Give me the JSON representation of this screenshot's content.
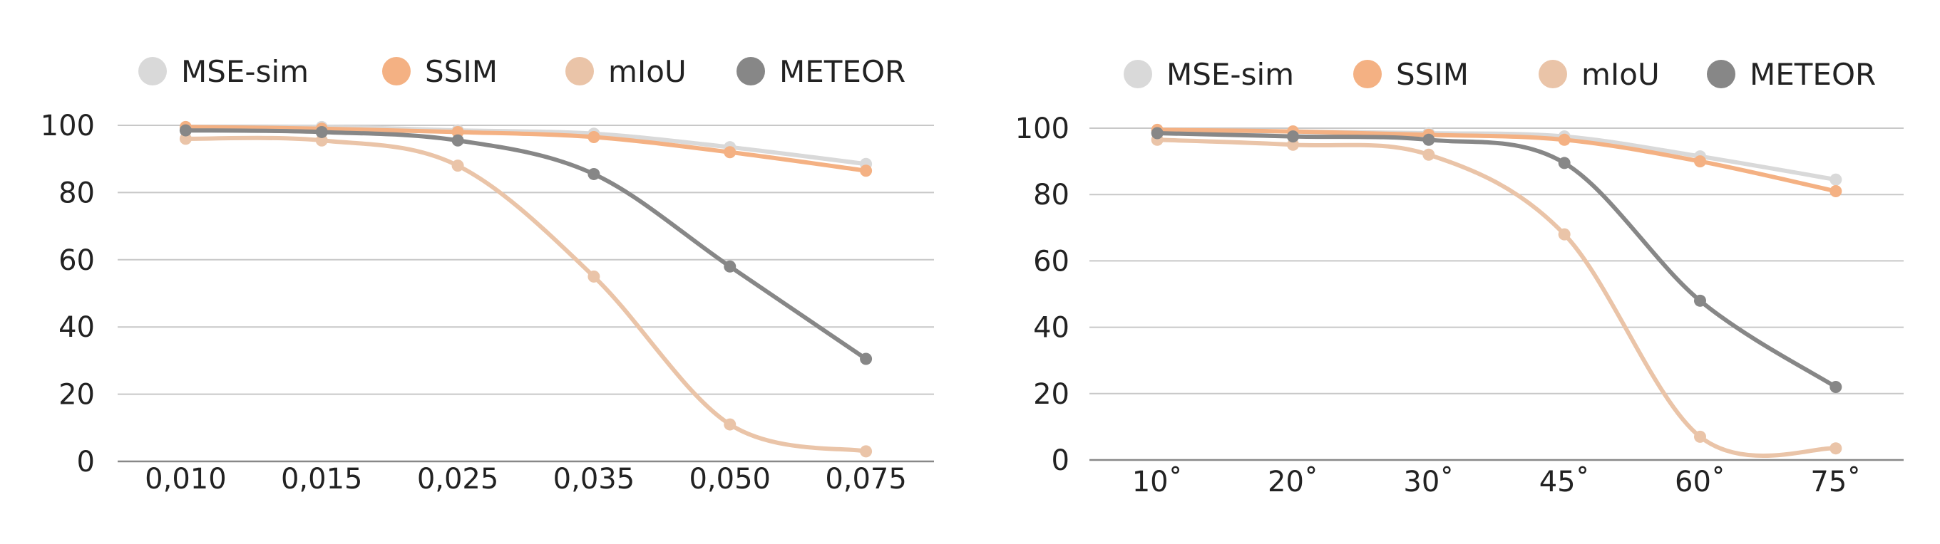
{
  "chart_data": [
    {
      "type": "line",
      "title": "",
      "xlabel": "",
      "ylabel": "",
      "categories": [
        "0,010",
        "0,015",
        "0,025",
        "0,035",
        "0,050",
        "0,075"
      ],
      "ylim": [
        0,
        100
      ],
      "yticks": [
        "0",
        "20",
        "40",
        "60",
        "80",
        "100"
      ],
      "grid": true,
      "legend_position": "top",
      "series": [
        {
          "name": "MSE-sim",
          "color": "#d9d9d9",
          "values": [
            99,
            99.5,
            98.5,
            97.5,
            93.5,
            88.5
          ]
        },
        {
          "name": "SSIM",
          "color": "#f4b183",
          "values": [
            99.5,
            99,
            98,
            96.5,
            92,
            86.5
          ]
        },
        {
          "name": "mIoU",
          "color": "#eac4a8",
          "values": [
            96,
            95.5,
            88,
            55,
            11,
            3
          ]
        },
        {
          "name": "METEOR",
          "color": "#878787",
          "values": [
            98.5,
            98,
            95.5,
            85.5,
            58,
            30.5
          ]
        }
      ]
    },
    {
      "type": "line",
      "title": "",
      "xlabel": "",
      "ylabel": "",
      "categories": [
        "10˚",
        "20˚",
        "30˚",
        "45˚",
        "60˚",
        "75˚"
      ],
      "ylim": [
        0,
        100
      ],
      "yticks": [
        "0",
        "20",
        "40",
        "60",
        "80",
        "100"
      ],
      "grid": true,
      "legend_position": "top",
      "series": [
        {
          "name": "MSE-sim",
          "color": "#d9d9d9",
          "values": [
            99,
            99,
            98.5,
            97.5,
            91.5,
            84.5
          ]
        },
        {
          "name": "SSIM",
          "color": "#f4b183",
          "values": [
            99.5,
            99,
            98,
            96.5,
            90,
            81
          ]
        },
        {
          "name": "mIoU",
          "color": "#eac4a8",
          "values": [
            96.5,
            95,
            92,
            68,
            7,
            3.5
          ]
        },
        {
          "name": "METEOR",
          "color": "#878787",
          "values": [
            98.5,
            97.5,
            96.5,
            89.5,
            48,
            22
          ]
        }
      ]
    }
  ]
}
